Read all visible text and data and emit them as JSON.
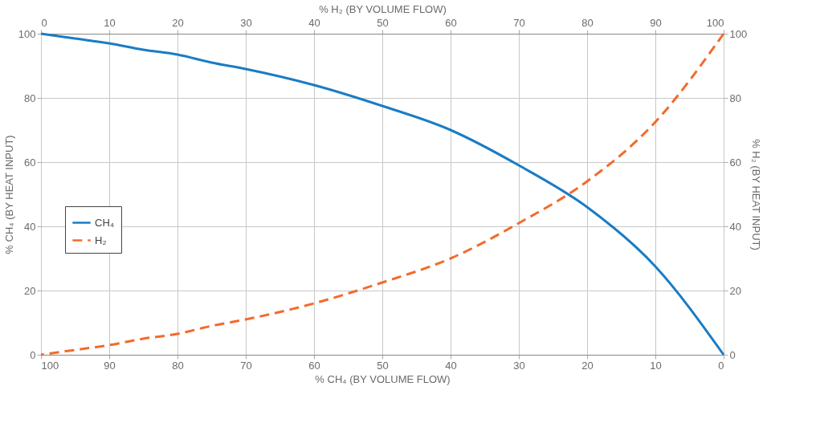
{
  "chart_data": {
    "type": "line",
    "xlabel": "% CH₄ (BY VOLUME FLOW)",
    "x2label": "% H₂ (BY VOLUME FLOW)",
    "ylabel": "% CH₄ (BY HEAT INPUT)",
    "y2label": "% H₂ (BY HEAT INPUT)",
    "x": [
      0,
      10,
      20,
      30,
      40,
      50,
      60,
      70,
      75,
      80,
      85,
      90,
      95,
      100
    ],
    "series": [
      {
        "name": "CH₄",
        "color": "#1a7cc4",
        "line_style": "solid",
        "values": [
          0,
          27.5,
          46,
          59,
          70,
          77.5,
          84,
          89,
          91,
          93.5,
          95,
          97,
          98.5,
          100
        ]
      },
      {
        "name": "H₂",
        "color": "#f26b2c",
        "line_style": "dashed",
        "axis": "y2",
        "values": [
          100,
          72.5,
          54,
          41,
          30,
          22.5,
          16,
          11,
          9,
          6.5,
          5,
          3,
          1.5,
          0
        ]
      }
    ],
    "xlim": [
      100,
      0
    ],
    "xticks": [
      100,
      90,
      80,
      70,
      60,
      50,
      40,
      30,
      20,
      10,
      0
    ],
    "x2lim": [
      0,
      100
    ],
    "x2ticks": [
      0,
      10,
      20,
      30,
      40,
      50,
      60,
      70,
      80,
      90,
      100
    ],
    "ylim": [
      0,
      100
    ],
    "yticks": [
      0,
      20,
      40,
      60,
      80,
      100
    ],
    "y2lim": [
      0,
      100
    ],
    "y2ticks": [
      0,
      20,
      40,
      60,
      80,
      100
    ],
    "grid": true,
    "legend": "left",
    "marker": "none"
  }
}
